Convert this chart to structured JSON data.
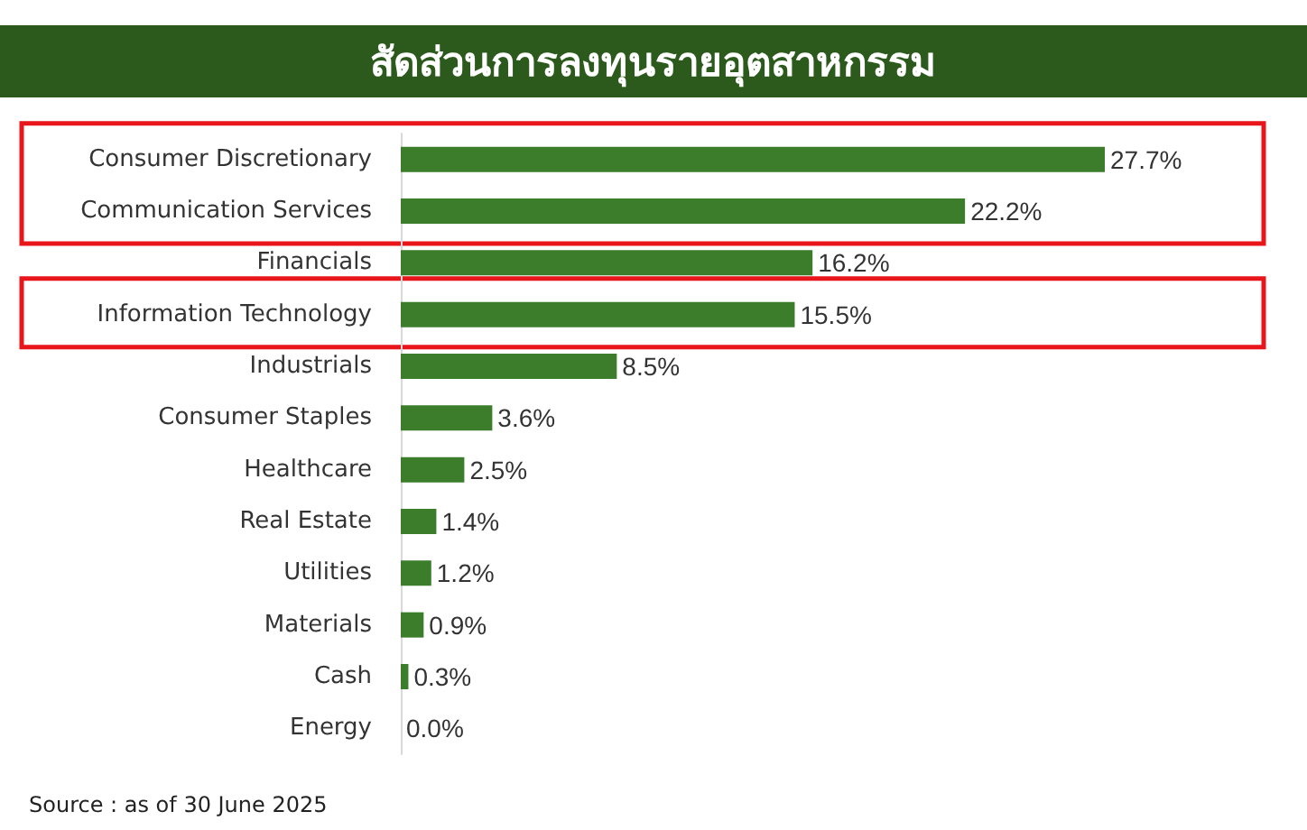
{
  "chart_data": {
    "type": "bar",
    "orientation": "horizontal",
    "title": "สัดส่วนการลงทุนรายอุตสาหกรรม",
    "categories": [
      "Consumer Discretionary",
      "Communication Services",
      "Financials",
      "Information Technology",
      "Industrials",
      "Consumer Staples",
      "Healthcare",
      "Real Estate",
      "Utilities",
      "Materials",
      "Cash",
      "Energy"
    ],
    "values": [
      27.7,
      22.2,
      16.2,
      15.5,
      8.5,
      3.6,
      2.5,
      1.4,
      1.2,
      0.9,
      0.3,
      0.0
    ],
    "value_labels": [
      "27.7%",
      "22.2%",
      "16.2%",
      "15.5%",
      "8.5%",
      "3.6%",
      "2.5%",
      "1.4%",
      "1.2%",
      "0.9%",
      "0.3%",
      "0.0%"
    ],
    "color": "#3b7d2a",
    "annotations": [
      "Source : as of 30 June 2025"
    ]
  }
}
